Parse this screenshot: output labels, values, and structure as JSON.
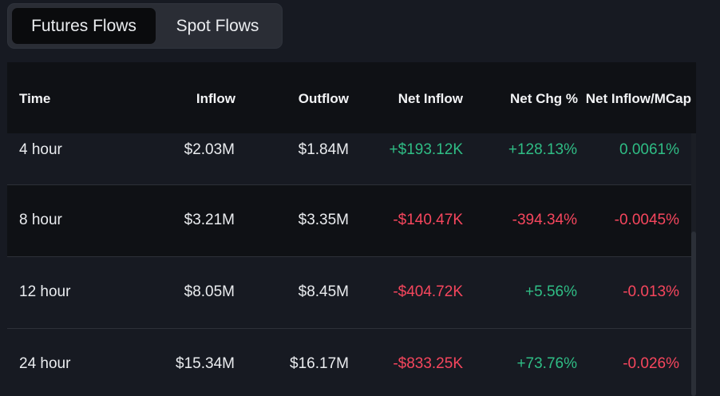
{
  "tabs": {
    "futures_label": "Futures Flows",
    "spot_label": "Spot Flows",
    "active": "Futures Flows"
  },
  "table": {
    "headers": {
      "time": "Time",
      "inflow": "Inflow",
      "outflow": "Outflow",
      "net_inflow": "Net Inflow",
      "net_chg": "Net Chg %",
      "net_mcap": "Net Inflow/MCap"
    },
    "rows": [
      {
        "time": "4 hour",
        "inflow": "$2.03M",
        "outflow": "$1.84M",
        "net_inflow": "+$193.12K",
        "net_chg": "+128.13%",
        "net_mcap": "0.0061%"
      },
      {
        "time": "8 hour",
        "inflow": "$3.21M",
        "outflow": "$3.35M",
        "net_inflow": "-$140.47K",
        "net_chg": "-394.34%",
        "net_mcap": "-0.0045%"
      },
      {
        "time": "12 hour",
        "inflow": "$8.05M",
        "outflow": "$8.45M",
        "net_inflow": "-$404.72K",
        "net_chg": "+5.56%",
        "net_mcap": "-0.013%"
      },
      {
        "time": "24 hour",
        "inflow": "$15.34M",
        "outflow": "$16.17M",
        "net_inflow": "-$833.25K",
        "net_chg": "+73.76%",
        "net_mcap": "-0.026%"
      }
    ]
  },
  "colors": {
    "positive": "#2fbd85",
    "negative": "#f6465d",
    "background": "#171a22"
  }
}
